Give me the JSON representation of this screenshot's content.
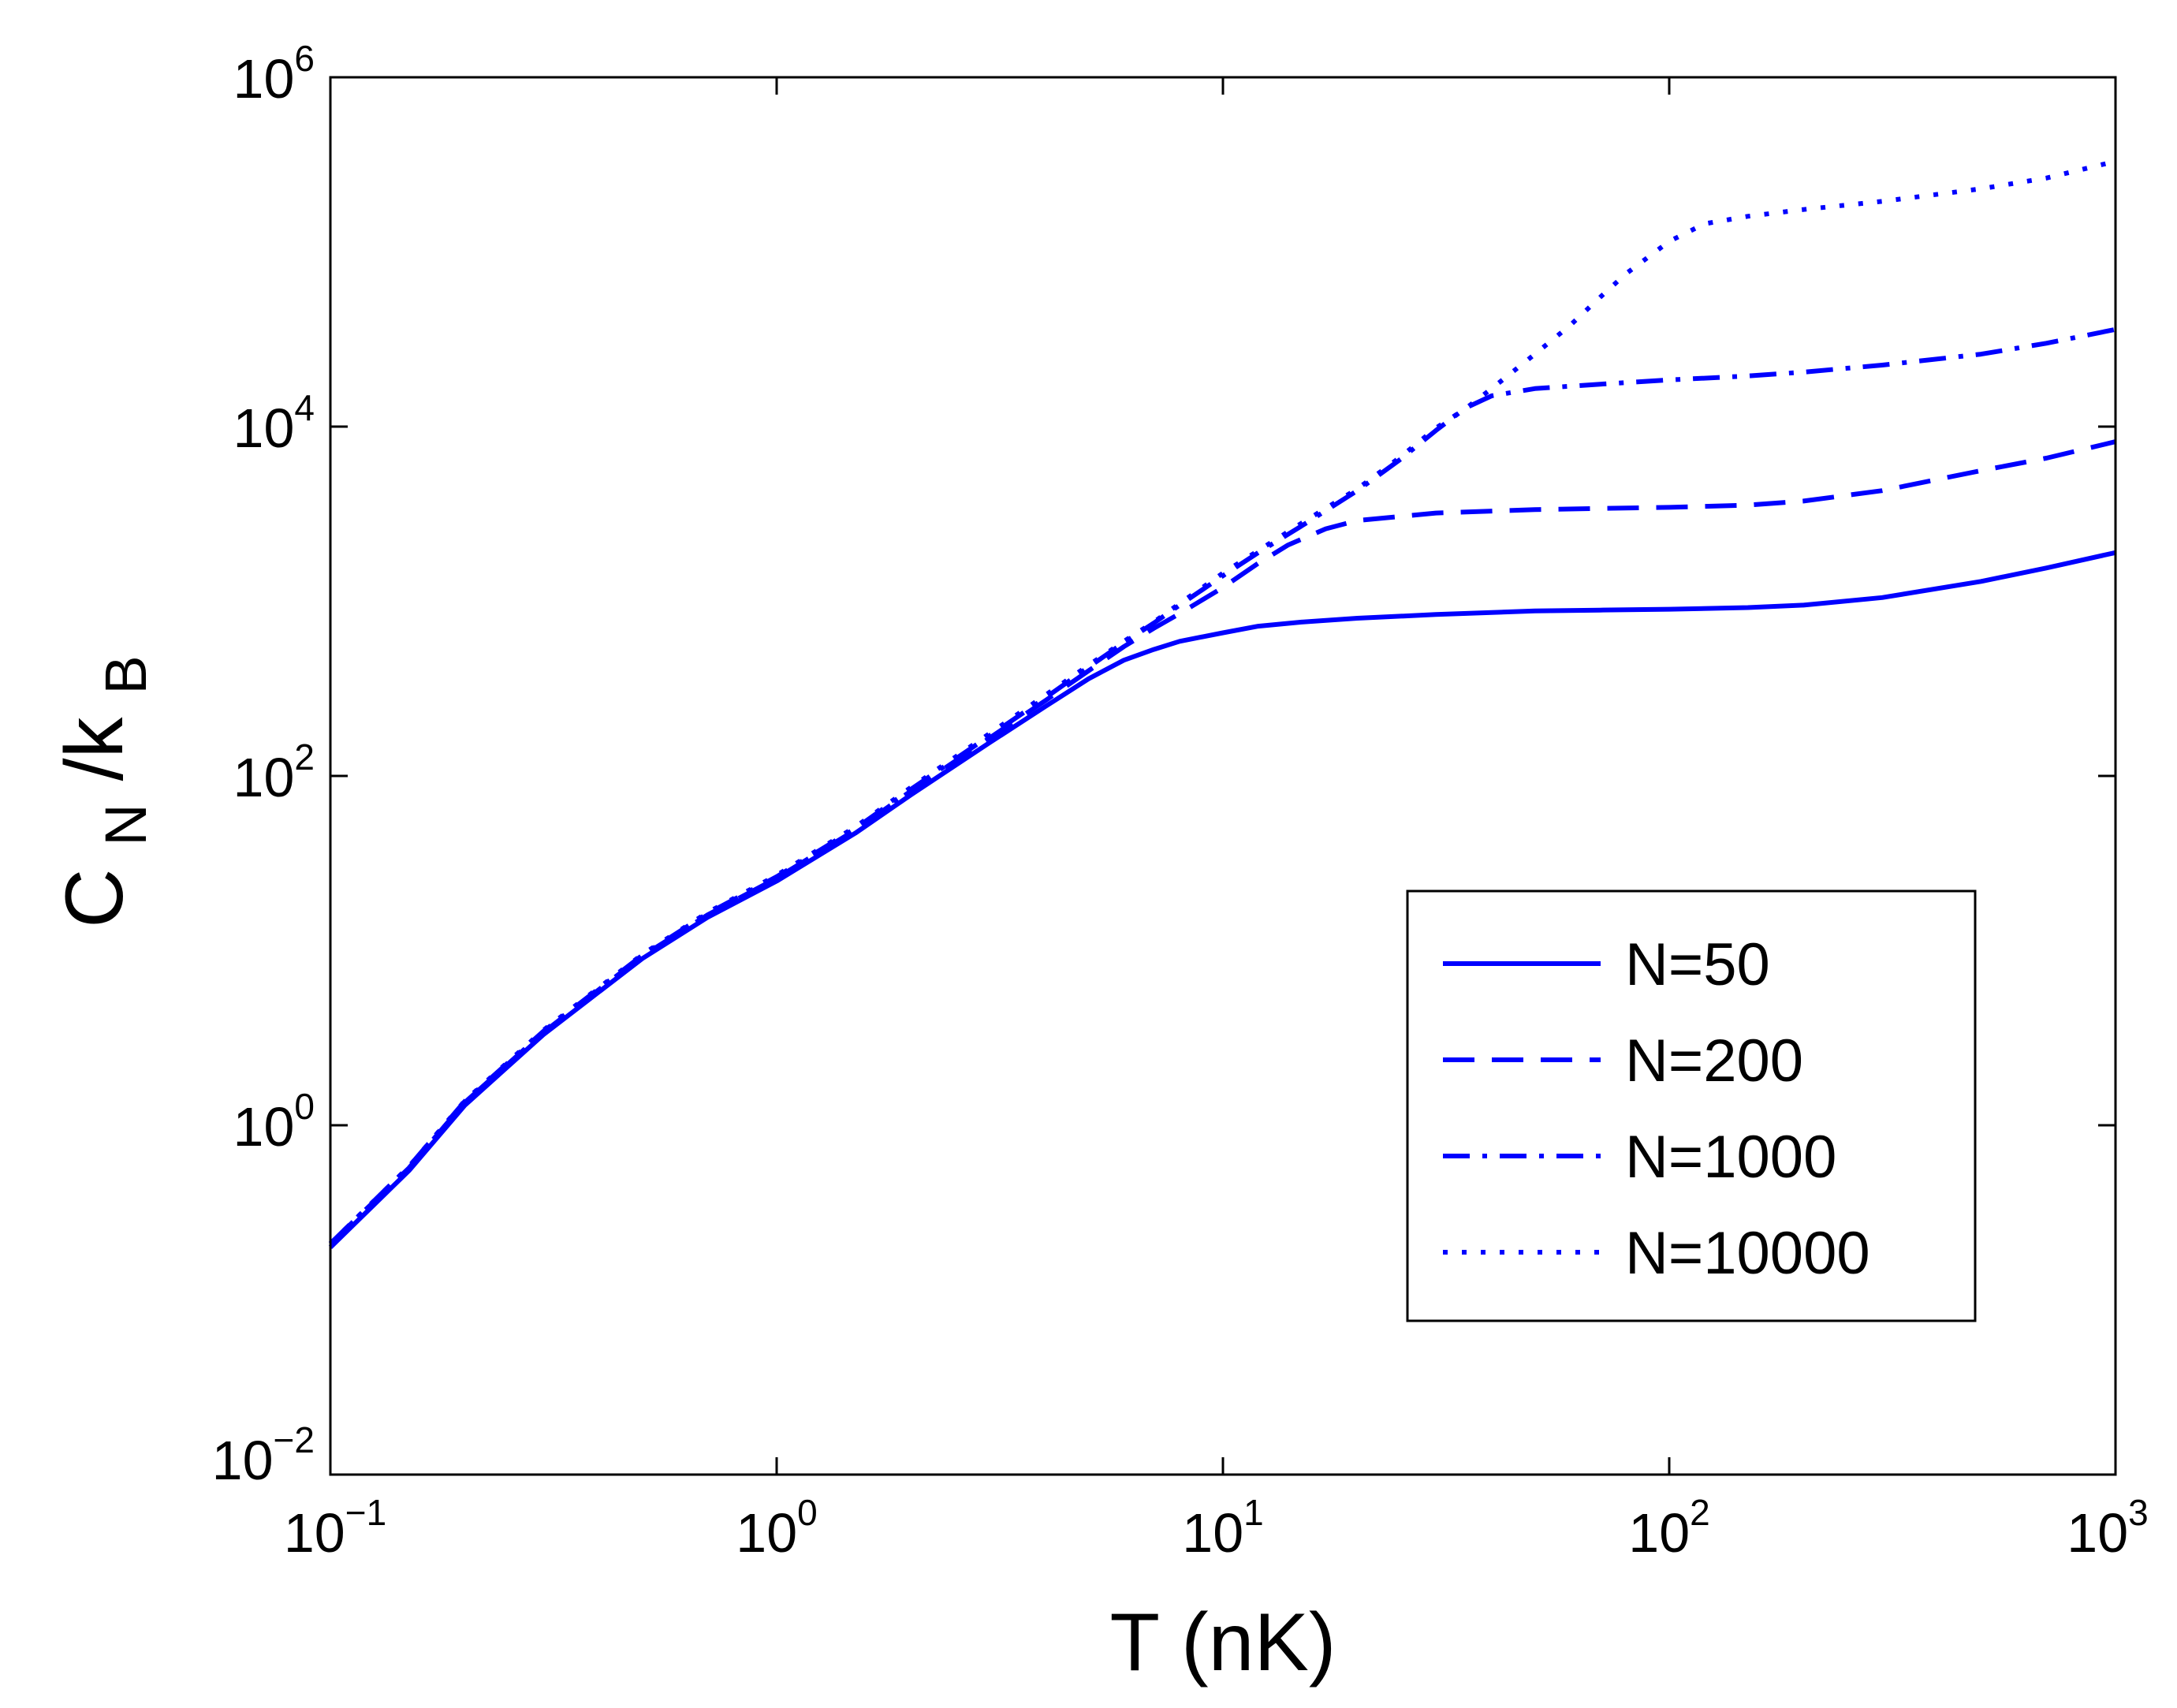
{
  "chart_data": {
    "type": "line",
    "title": "",
    "xlabel": "T (nK)",
    "ylabel": {
      "base": "C",
      "sub1": "N",
      "mid": "/k",
      "sub2": "B"
    },
    "xscale": "log",
    "yscale": "log",
    "xlim": [
      0.1,
      1000
    ],
    "ylim": [
      0.01,
      1000000
    ],
    "xticks": [
      {
        "value": 0.1,
        "base": "10",
        "exp": "−1"
      },
      {
        "value": 1,
        "base": "10",
        "exp": "0"
      },
      {
        "value": 10,
        "base": "10",
        "exp": "1"
      },
      {
        "value": 100,
        "base": "10",
        "exp": "2"
      },
      {
        "value": 1000,
        "base": "10",
        "exp": "3"
      }
    ],
    "yticks": [
      {
        "value": 0.01,
        "base": "10",
        "exp": "−2"
      },
      {
        "value": 1,
        "base": "10",
        "exp": "0"
      },
      {
        "value": 100,
        "base": "10",
        "exp": "2"
      },
      {
        "value": 10000,
        "base": "10",
        "exp": "4"
      },
      {
        "value": 1000000,
        "base": "10",
        "exp": "6"
      }
    ],
    "grid": false,
    "legend_position": "lower-right",
    "line_color": "#0000ff",
    "series": [
      {
        "name": "N=50",
        "style": "solid",
        "x": [
          0.1,
          0.15,
          0.2,
          0.3,
          0.5,
          0.7,
          1,
          1.5,
          2,
          3,
          4,
          5,
          6,
          7,
          8,
          10,
          12,
          15,
          20,
          30,
          50,
          70,
          100,
          150,
          200,
          300,
          500,
          700,
          1000
        ],
        "y": [
          0.2,
          0.55,
          1.3,
          3.3,
          9.0,
          15.5,
          25,
          47,
          78,
          155,
          250,
          360,
          460,
          530,
          590,
          660,
          720,
          760,
          800,
          840,
          880,
          890,
          900,
          920,
          950,
          1050,
          1300,
          1550,
          1900
        ]
      },
      {
        "name": "N=200",
        "style": "dashed",
        "x": [
          0.1,
          0.15,
          0.2,
          0.3,
          0.5,
          0.7,
          1,
          1.5,
          2,
          3,
          4,
          5,
          6,
          7,
          8,
          10,
          12,
          14,
          17,
          20,
          30,
          50,
          70,
          100,
          150,
          200,
          300,
          500,
          700,
          1000
        ],
        "y": [
          0.21,
          0.57,
          1.35,
          3.4,
          9.3,
          16,
          26,
          49,
          82,
          165,
          270,
          400,
          550,
          700,
          850,
          1200,
          1650,
          2100,
          2600,
          2900,
          3200,
          3350,
          3400,
          3450,
          3550,
          3750,
          4300,
          5600,
          6600,
          8200
        ]
      },
      {
        "name": "N=1000",
        "style": "dashdot",
        "x": [
          0.1,
          0.15,
          0.2,
          0.3,
          0.5,
          0.7,
          1,
          1.5,
          2,
          3,
          4,
          5,
          6,
          7,
          8,
          10,
          12,
          15,
          20,
          25,
          30,
          35,
          40,
          50,
          70,
          100,
          150,
          200,
          300,
          500,
          700,
          1000
        ],
        "y": [
          0.21,
          0.58,
          1.37,
          3.45,
          9.4,
          16.3,
          26.5,
          50,
          84,
          170,
          280,
          420,
          580,
          750,
          950,
          1400,
          1900,
          2700,
          4300,
          6500,
          9500,
          12800,
          15000,
          16500,
          17500,
          18500,
          19500,
          20500,
          22500,
          26000,
          30000,
          36000
        ]
      },
      {
        "name": "N=10000",
        "style": "dotted",
        "x": [
          0.1,
          0.15,
          0.2,
          0.3,
          0.5,
          0.7,
          1,
          1.5,
          2,
          3,
          4,
          5,
          6,
          7,
          8,
          10,
          12,
          15,
          20,
          25,
          30,
          35,
          40,
          50,
          60,
          70,
          80,
          100,
          120,
          150,
          200,
          300,
          500,
          700,
          1000
        ],
        "y": [
          0.21,
          0.58,
          1.38,
          3.5,
          9.5,
          16.5,
          27,
          51,
          86,
          175,
          290,
          430,
          590,
          760,
          970,
          1450,
          1950,
          2800,
          4400,
          6700,
          9800,
          12700,
          16500,
          26000,
          38000,
          55000,
          75000,
          115000,
          145000,
          160000,
          175000,
          195000,
          230000,
          265000,
          330000
        ]
      }
    ]
  }
}
